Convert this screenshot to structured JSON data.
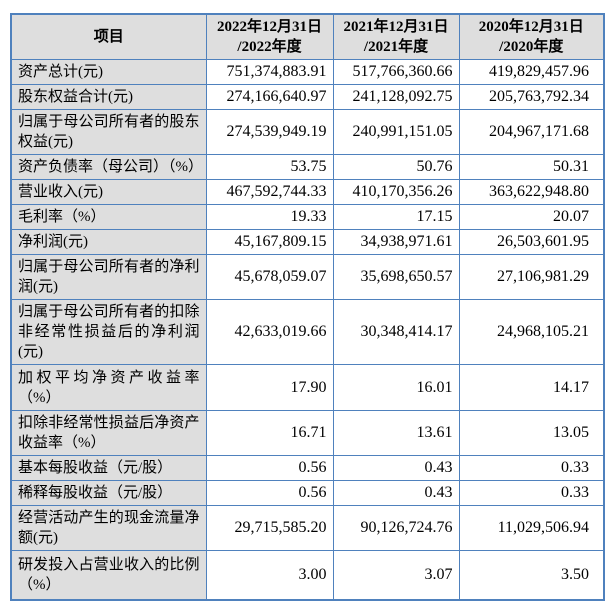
{
  "colors": {
    "border": "#4f81bd",
    "shaded_cell_bg": "#dedede",
    "data_cell_bg": "#ffffff",
    "text": "#000000"
  },
  "table": {
    "header": {
      "item_label": "项目",
      "columns": [
        {
          "line1": "2022年12月31日",
          "line2": "/2022年度"
        },
        {
          "line1": "2021年12月31日",
          "line2": "/2021年度"
        },
        {
          "line1": "2020年12月31日",
          "line2": "/2020年度"
        }
      ]
    },
    "rows": [
      {
        "label": "资产总计(元)",
        "values": [
          "751,374,883.91",
          "517,766,360.66",
          "419,829,457.96"
        ]
      },
      {
        "label": "股东权益合计(元)",
        "values": [
          "274,166,640.97",
          "241,128,092.75",
          "205,763,792.34"
        ]
      },
      {
        "label": "归属于母公司所有者的股东权益(元)",
        "values": [
          "274,539,949.19",
          "240,991,151.05",
          "204,967,171.68"
        ]
      },
      {
        "label": "资产负债率（母公司）（%）",
        "values": [
          "53.75",
          "50.76",
          "50.31"
        ]
      },
      {
        "label": "营业收入(元)",
        "values": [
          "467,592,744.33",
          "410,170,356.26",
          "363,622,948.80"
        ]
      },
      {
        "label": "毛利率（%）",
        "values": [
          "19.33",
          "17.15",
          "20.07"
        ]
      },
      {
        "label": "净利润(元)",
        "values": [
          "45,167,809.15",
          "34,938,971.61",
          "26,503,601.95"
        ]
      },
      {
        "label": "归属于母公司所有者的净利润(元)",
        "values": [
          "45,678,059.07",
          "35,698,650.57",
          "27,106,981.29"
        ]
      },
      {
        "label": "归属于母公司所有者的扣除非经常性损益后的净利润(元)",
        "values": [
          "42,633,019.66",
          "30,348,414.17",
          "24,968,105.21"
        ]
      },
      {
        "label": "加权平均净资产收益率（%）",
        "values": [
          "17.90",
          "16.01",
          "14.17"
        ]
      },
      {
        "label": "扣除非经常性损益后净资产收益率（%）",
        "values": [
          "16.71",
          "13.61",
          "13.05"
        ]
      },
      {
        "label": "基本每股收益（元/股）",
        "values": [
          "0.56",
          "0.43",
          "0.33"
        ]
      },
      {
        "label": "稀释每股收益（元/股）",
        "values": [
          "0.56",
          "0.43",
          "0.33"
        ]
      },
      {
        "label": "经营活动产生的现金流量净额(元)",
        "values": [
          "29,715,585.20",
          "90,126,724.76",
          "11,029,506.94"
        ]
      },
      {
        "label": "研发投入占营业收入的比例（%）",
        "values": [
          "3.00",
          "3.07",
          "3.50"
        ]
      }
    ]
  }
}
